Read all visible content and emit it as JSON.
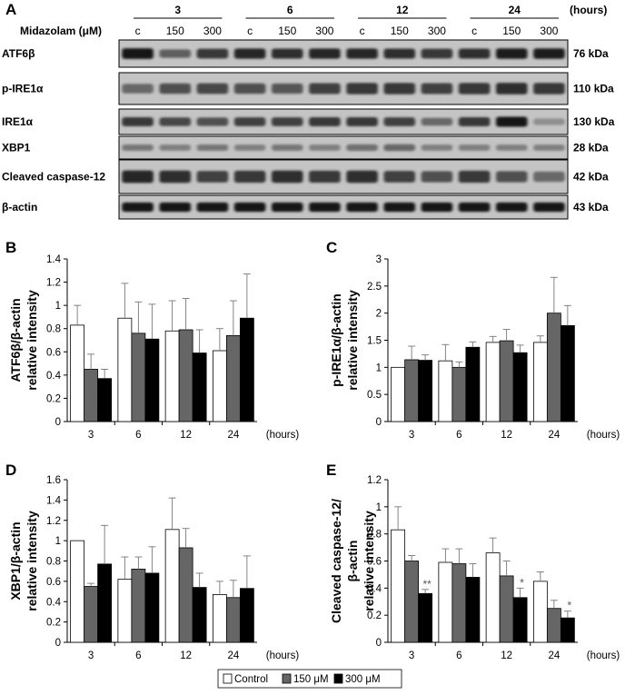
{
  "blot": {
    "panel_label": "A",
    "time_unit": "(hours)",
    "row_header": "Midazolam (μM)",
    "time_groups": [
      "3",
      "6",
      "12",
      "24"
    ],
    "lane_labels": [
      "c",
      "150",
      "300",
      "c",
      "150",
      "300",
      "c",
      "150",
      "300",
      "c",
      "150",
      "300"
    ],
    "rows": [
      {
        "label": "ATF6β",
        "kda": "76 kDa",
        "intensity": [
          0.95,
          0.5,
          0.75,
          0.85,
          0.8,
          0.85,
          0.85,
          0.8,
          0.75,
          0.8,
          0.9,
          0.9
        ]
      },
      {
        "label": "p-IRE1α",
        "kda": "110 kDa",
        "intensity": [
          0.45,
          0.6,
          0.65,
          0.6,
          0.55,
          0.7,
          0.75,
          0.75,
          0.7,
          0.75,
          0.8,
          0.75
        ]
      },
      {
        "label": "IRE1α",
        "kda": "130 kDa",
        "intensity": [
          0.75,
          0.65,
          0.6,
          0.7,
          0.7,
          0.75,
          0.75,
          0.7,
          0.45,
          0.75,
          0.95,
          0.2
        ]
      },
      {
        "label": "XBP1",
        "kda": "28 kDa",
        "intensity": [
          0.35,
          0.3,
          0.35,
          0.3,
          0.35,
          0.3,
          0.4,
          0.45,
          0.3,
          0.3,
          0.3,
          0.3
        ]
      },
      {
        "label": "Cleaved caspase-12",
        "kda": "42 kDa",
        "intensity": [
          0.85,
          0.8,
          0.7,
          0.75,
          0.8,
          0.75,
          0.8,
          0.7,
          0.6,
          0.75,
          0.6,
          0.45
        ]
      },
      {
        "label": "β-actin",
        "kda": "43 kDa",
        "intensity": [
          0.95,
          0.95,
          0.95,
          0.95,
          0.95,
          0.95,
          0.95,
          0.95,
          0.95,
          0.95,
          0.95,
          0.95
        ]
      }
    ]
  },
  "chart_data": [
    {
      "panel_label": "B",
      "type": "bar",
      "ylabel": [
        "ATF6β/β-actin",
        "relative intensity"
      ],
      "xunit": "(hours)",
      "categories": [
        "3",
        "6",
        "12",
        "24"
      ],
      "ylim": [
        0,
        1.4
      ],
      "yticks": [
        "0",
        "0.2",
        "0.4",
        "0.6",
        "0.8",
        "1",
        "1.2",
        "1.4"
      ],
      "series": [
        {
          "name": "Control",
          "values": [
            0.83,
            0.89,
            0.78,
            0.61
          ],
          "errors": [
            0.17,
            0.3,
            0.26,
            0.19
          ],
          "color": "#ffffff"
        },
        {
          "name": "150 μM",
          "values": [
            0.45,
            0.76,
            0.79,
            0.74
          ],
          "errors": [
            0.13,
            0.27,
            0.27,
            0.3
          ],
          "color": "#666666"
        },
        {
          "name": "300 μM",
          "values": [
            0.37,
            0.71,
            0.59,
            0.89
          ],
          "errors": [
            0.08,
            0.3,
            0.2,
            0.38
          ],
          "color": "#000000"
        }
      ],
      "annotations": [
        [
          "",
          "",
          ""
        ],
        [
          "",
          "",
          ""
        ],
        [
          "",
          "",
          ""
        ],
        [
          "",
          "",
          ""
        ]
      ]
    },
    {
      "panel_label": "C",
      "type": "bar",
      "ylabel": [
        "p-IRE1α/β-actin",
        "relative intensity"
      ],
      "xunit": "(hours)",
      "categories": [
        "3",
        "6",
        "12",
        "24"
      ],
      "ylim": [
        0,
        3
      ],
      "yticks": [
        "0",
        "0.5",
        "1",
        "1.5",
        "2",
        "2.5",
        "3"
      ],
      "series": [
        {
          "name": "Control",
          "values": [
            1.0,
            1.12,
            1.46,
            1.46
          ],
          "errors": [
            0,
            0.3,
            0.11,
            0.12
          ],
          "color": "#ffffff"
        },
        {
          "name": "150 μM",
          "values": [
            1.14,
            1.0,
            1.49,
            2.0
          ],
          "errors": [
            0.25,
            0.1,
            0.21,
            0.66
          ],
          "color": "#666666"
        },
        {
          "name": "300 μM",
          "values": [
            1.13,
            1.37,
            1.27,
            1.77
          ],
          "errors": [
            0.1,
            0.1,
            0.14,
            0.37
          ],
          "color": "#000000"
        }
      ],
      "annotations": [
        [
          "",
          "",
          ""
        ],
        [
          "",
          "",
          ""
        ],
        [
          "",
          "",
          ""
        ],
        [
          "",
          "",
          ""
        ]
      ]
    },
    {
      "panel_label": "D",
      "type": "bar",
      "ylabel": [
        "XBP1/β-actin",
        "relative intensity"
      ],
      "xunit": "(hours)",
      "categories": [
        "3",
        "6",
        "12",
        "24"
      ],
      "ylim": [
        0,
        1.6
      ],
      "yticks": [
        "0",
        "0.2",
        "0.4",
        "0.6",
        "0.8",
        "1",
        "1.2",
        "1.4",
        "1.6"
      ],
      "series": [
        {
          "name": "Control",
          "values": [
            1.0,
            0.62,
            1.11,
            0.47
          ],
          "errors": [
            0,
            0.22,
            0.31,
            0.13
          ],
          "color": "#ffffff"
        },
        {
          "name": "150 μM",
          "values": [
            0.55,
            0.72,
            0.93,
            0.44
          ],
          "errors": [
            0.03,
            0.12,
            0.19,
            0.17
          ],
          "color": "#666666"
        },
        {
          "name": "300 μM",
          "values": [
            0.77,
            0.68,
            0.54,
            0.53
          ],
          "errors": [
            0.38,
            0.26,
            0.14,
            0.32
          ],
          "color": "#000000"
        }
      ],
      "annotations": [
        [
          "",
          "",
          ""
        ],
        [
          "",
          "",
          ""
        ],
        [
          "",
          "",
          ""
        ],
        [
          "",
          "",
          ""
        ]
      ]
    },
    {
      "panel_label": "E",
      "type": "bar",
      "ylabel": [
        "Cleaved caspase-12/",
        "β-actin",
        "relative intensity"
      ],
      "xunit": "(hours)",
      "categories": [
        "3",
        "6",
        "12",
        "24"
      ],
      "ylim": [
        0,
        1.2
      ],
      "yticks": [
        "0",
        "0.2",
        "0.4",
        "0.6",
        "0.8",
        "1",
        "1.2"
      ],
      "series": [
        {
          "name": "Control",
          "values": [
            0.83,
            0.59,
            0.66,
            0.45
          ],
          "errors": [
            0.17,
            0.1,
            0.11,
            0.07
          ],
          "color": "#ffffff"
        },
        {
          "name": "150 μM",
          "values": [
            0.6,
            0.58,
            0.49,
            0.25
          ],
          "errors": [
            0.04,
            0.11,
            0.11,
            0.06
          ],
          "color": "#666666"
        },
        {
          "name": "300 μM",
          "values": [
            0.36,
            0.48,
            0.33,
            0.18
          ],
          "errors": [
            0.03,
            0.1,
            0.07,
            0.05
          ],
          "color": "#000000"
        }
      ],
      "annotations": [
        [
          "",
          "",
          "**"
        ],
        [
          "",
          "",
          ""
        ],
        [
          "",
          "",
          "*"
        ],
        [
          "",
          "",
          "*"
        ]
      ]
    }
  ],
  "legend": {
    "items": [
      {
        "label": "Control",
        "color": "#ffffff"
      },
      {
        "label": "150 μM",
        "color": "#666666"
      },
      {
        "label": "300 μM",
        "color": "#000000"
      }
    ]
  }
}
